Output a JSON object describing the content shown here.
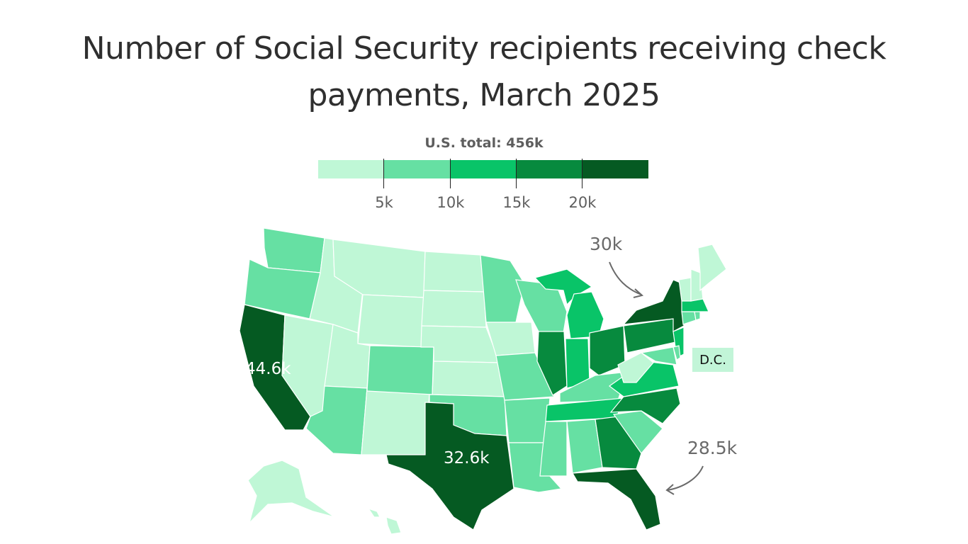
{
  "title": "Number of Social Security recipients receiving check payments, March 2025",
  "legend": {
    "heading": "U.S. total: 456k",
    "colors": [
      "#bff7d6",
      "#66e0a3",
      "#09c468",
      "#078a3e",
      "#055a22"
    ],
    "tick_labels": [
      "5k",
      "10k",
      "15k",
      "20k"
    ]
  },
  "labels": {
    "california": "44.6k",
    "texas": "32.6k",
    "new_york": "30k",
    "florida": "28.5k",
    "dc": "D.C."
  },
  "state_bins": {
    "WA": 1,
    "OR": 1,
    "CA": 4,
    "NV": 0,
    "ID": 0,
    "MT": 0,
    "WY": 0,
    "UT": 0,
    "AZ": 1,
    "NM": 0,
    "CO": 1,
    "ND": 0,
    "SD": 0,
    "NE": 0,
    "KS": 0,
    "OK": 1,
    "TX": 4,
    "MN": 1,
    "IA": 0,
    "MO": 1,
    "AR": 1,
    "LA": 1,
    "WI": 1,
    "IL": 3,
    "MI": 2,
    "IN": 2,
    "OH": 3,
    "KY": 1,
    "TN": 2,
    "MS": 1,
    "AL": 1,
    "GA": 3,
    "FL": 4,
    "SC": 1,
    "NC": 3,
    "VA": 2,
    "WV": 0,
    "PA": 3,
    "NY": 4,
    "NJ": 2,
    "MD": 1,
    "DE": 1,
    "CT": 1,
    "RI": 1,
    "MA": 2,
    "VT": 0,
    "NH": 0,
    "ME": 0,
    "AK": 0,
    "HI": 0
  }
}
